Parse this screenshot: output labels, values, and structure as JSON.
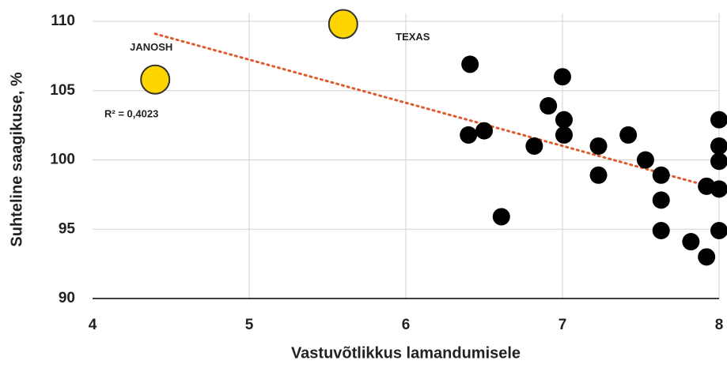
{
  "chart_data": {
    "type": "scatter",
    "xlabel": "Vastuvõtlikkus lamandumisele",
    "ylabel": "Suhteline saagikuse, %",
    "xlim": [
      4,
      8
    ],
    "xticks": [
      4,
      5,
      6,
      7,
      8
    ],
    "ylim": [
      90,
      110
    ],
    "yticks": [
      90,
      95,
      100,
      105,
      110
    ],
    "grid": true,
    "series": [
      {
        "color": "#000000",
        "x": [
          6.41,
          6.4,
          6.5,
          6.61,
          6.82,
          6.91,
          7.0,
          7.01,
          7.01,
          7.23,
          7.23,
          7.42,
          7.53,
          7.63,
          7.63,
          7.63,
          7.82,
          7.92,
          7.92,
          8.0,
          8.0,
          8.0,
          8.0,
          8.0
        ],
        "values": [
          106.9,
          101.8,
          102.1,
          95.9,
          101.0,
          103.9,
          106.0,
          102.9,
          101.8,
          101.0,
          98.9,
          101.8,
          100.0,
          98.9,
          97.1,
          94.9,
          94.1,
          93.0,
          98.1,
          102.9,
          101.0,
          99.9,
          97.9,
          94.9
        ]
      },
      {
        "color": "#ffd500",
        "x": [
          4.4,
          5.6
        ],
        "values": [
          105.8,
          109.8
        ],
        "labels": [
          "JANOSH",
          "TEXAS"
        ]
      }
    ],
    "trendline": {
      "color": "#e05a2b",
      "x": [
        4.4,
        8.0
      ],
      "values": [
        109.1,
        97.9
      ]
    },
    "annotation": "R² = 0,4023"
  }
}
